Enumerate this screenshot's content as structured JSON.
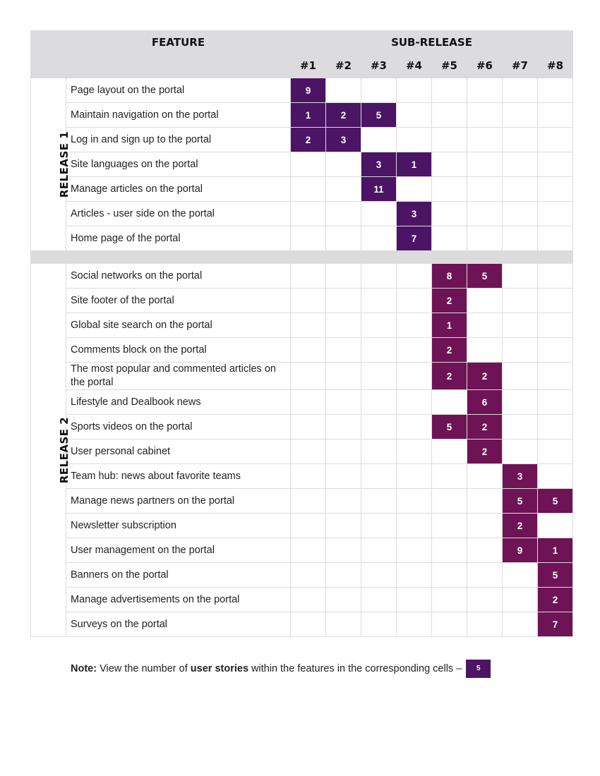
{
  "header": {
    "feature": "FEATURE",
    "sub_release": "SUB-RELEASE",
    "sub_releases": [
      "#1",
      "#2",
      "#3",
      "#4",
      "#5",
      "#6",
      "#7",
      "#8"
    ]
  },
  "colors": {
    "release1_cell": "#4b1465",
    "release2_cell": "#6e1355",
    "header_bg": "#dcdcde"
  },
  "releases": [
    {
      "label": "RELEASE 1",
      "features": [
        {
          "name": "Page layout on the portal",
          "cells": [
            "9",
            "",
            "",
            "",
            "",
            "",
            "",
            ""
          ]
        },
        {
          "name": "Maintain navigation on the portal",
          "cells": [
            "1",
            "2",
            "5",
            "",
            "",
            "",
            "",
            ""
          ]
        },
        {
          "name": "Log in and sign up to the portal",
          "cells": [
            "2",
            "3",
            "",
            "",
            "",
            "",
            "",
            ""
          ]
        },
        {
          "name": "Site languages on the portal",
          "cells": [
            "",
            "",
            "3",
            "1",
            "",
            "",
            "",
            ""
          ]
        },
        {
          "name": "Manage articles on the portal",
          "cells": [
            "",
            "",
            "11",
            "",
            "",
            "",
            "",
            ""
          ]
        },
        {
          "name": "Articles - user side on the portal",
          "cells": [
            "",
            "",
            "",
            "3",
            "",
            "",
            "",
            ""
          ]
        },
        {
          "name": "Home page of the portal",
          "cells": [
            "",
            "",
            "",
            "7",
            "",
            "",
            "",
            ""
          ]
        }
      ]
    },
    {
      "label": "RELEASE 2",
      "features": [
        {
          "name": "Social networks on the portal",
          "cells": [
            "",
            "",
            "",
            "",
            "8",
            "5",
            "",
            ""
          ]
        },
        {
          "name": "Site footer of the portal",
          "cells": [
            "",
            "",
            "",
            "",
            "2",
            "",
            "",
            ""
          ]
        },
        {
          "name": "Global site search on the portal",
          "cells": [
            "",
            "",
            "",
            "",
            "1",
            "",
            "",
            ""
          ]
        },
        {
          "name": "Comments block on the portal",
          "cells": [
            "",
            "",
            "",
            "",
            "2",
            "",
            "",
            ""
          ]
        },
        {
          "name": "The most popular and commented articles on the portal",
          "cells": [
            "",
            "",
            "",
            "",
            "2",
            "2",
            "",
            ""
          ]
        },
        {
          "name": "Lifestyle and Dealbook news",
          "cells": [
            "",
            "",
            "",
            "",
            "",
            "6",
            "",
            ""
          ]
        },
        {
          "name": "Sports videos on the portal",
          "cells": [
            "",
            "",
            "",
            "",
            "5",
            "2",
            "",
            ""
          ]
        },
        {
          "name": "User personal cabinet",
          "cells": [
            "",
            "",
            "",
            "",
            "",
            "2",
            "",
            ""
          ]
        },
        {
          "name": "Team hub: news about favorite teams",
          "cells": [
            "",
            "",
            "",
            "",
            "",
            "",
            "3",
            ""
          ]
        },
        {
          "name": "Manage news partners on the portal",
          "cells": [
            "",
            "",
            "",
            "",
            "",
            "",
            "5",
            "5"
          ]
        },
        {
          "name": "Newsletter subscription",
          "cells": [
            "",
            "",
            "",
            "",
            "",
            "",
            "2",
            ""
          ]
        },
        {
          "name": "User management on the portal",
          "cells": [
            "",
            "",
            "",
            "",
            "",
            "",
            "9",
            "1"
          ]
        },
        {
          "name": "Banners on the portal",
          "cells": [
            "",
            "",
            "",
            "",
            "",
            "",
            "",
            "5"
          ]
        },
        {
          "name": "Manage advertisements on the portal",
          "cells": [
            "",
            "",
            "",
            "",
            "",
            "",
            "",
            "2"
          ]
        },
        {
          "name": "Surveys on the portal",
          "cells": [
            "",
            "",
            "",
            "",
            "",
            "",
            "",
            "7"
          ]
        }
      ]
    }
  ],
  "note": {
    "label": "Note:",
    "text_before": " View the number of ",
    "bold": "user stories",
    "text_after": " within the features in the corresponding cells –",
    "swatch_value": "5"
  }
}
